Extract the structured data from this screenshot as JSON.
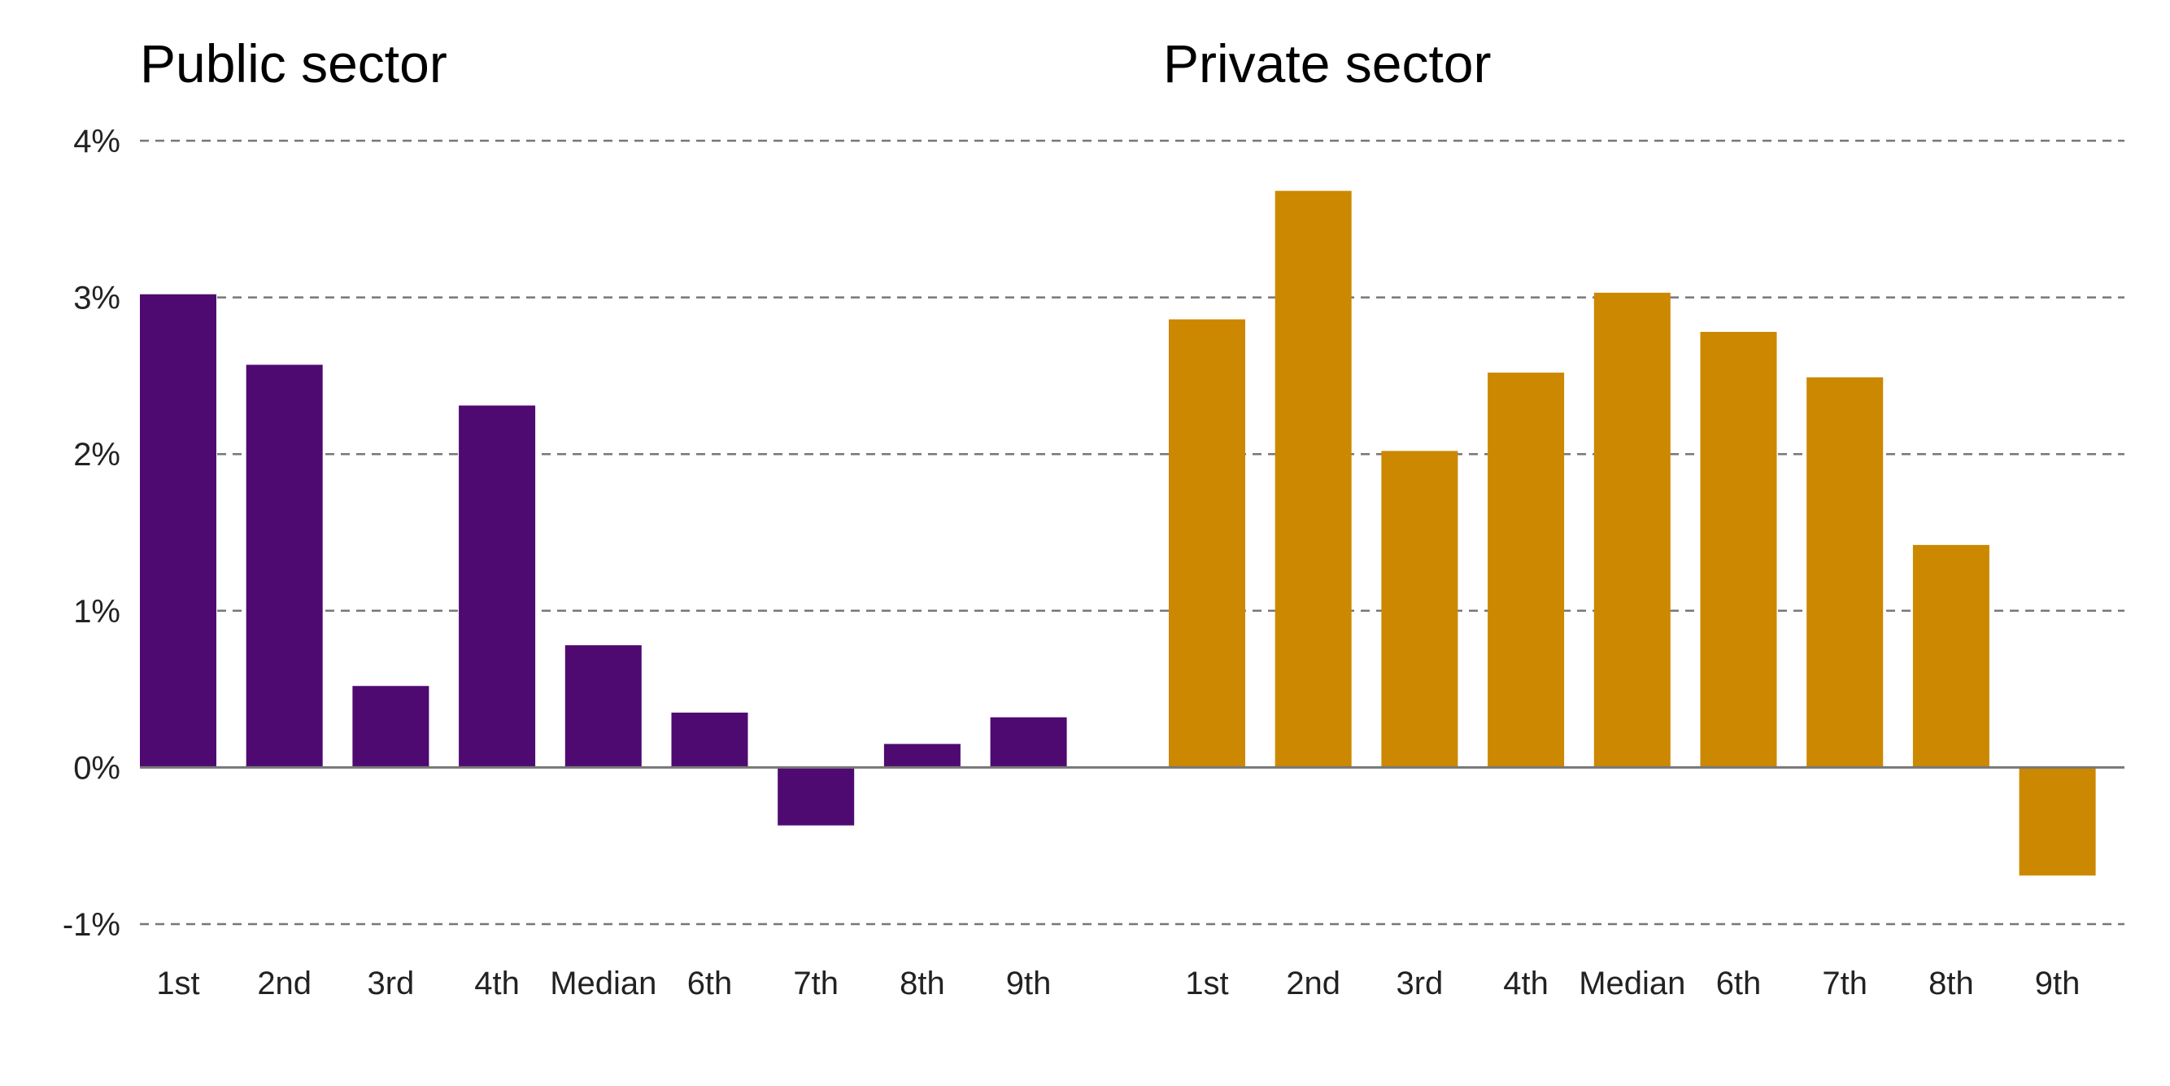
{
  "panels_titles": {
    "public": "Public sector",
    "private": "Private sector"
  },
  "chart_data": {
    "type": "bar",
    "ylim": [
      -1,
      4
    ],
    "y_ticks": [
      {
        "value": -1,
        "label": "-1%"
      },
      {
        "value": 0,
        "label": "0%"
      },
      {
        "value": 1,
        "label": "1%"
      },
      {
        "value": 2,
        "label": "2%"
      },
      {
        "value": 3,
        "label": "3%"
      },
      {
        "value": 4,
        "label": "4%"
      }
    ],
    "grid": true,
    "categories": [
      "1st",
      "2nd",
      "3rd",
      "4th",
      "Median",
      "6th",
      "7th",
      "8th",
      "9th"
    ],
    "panels": [
      {
        "title": "Public sector",
        "color": "#4e0a71",
        "values": [
          3.02,
          2.57,
          0.52,
          2.31,
          0.78,
          0.35,
          -0.37,
          0.15,
          0.32
        ]
      },
      {
        "title": "Private sector",
        "color": "#cc8800",
        "values": [
          2.86,
          3.68,
          2.02,
          2.52,
          3.03,
          2.78,
          2.49,
          1.42,
          -0.69
        ]
      }
    ]
  }
}
